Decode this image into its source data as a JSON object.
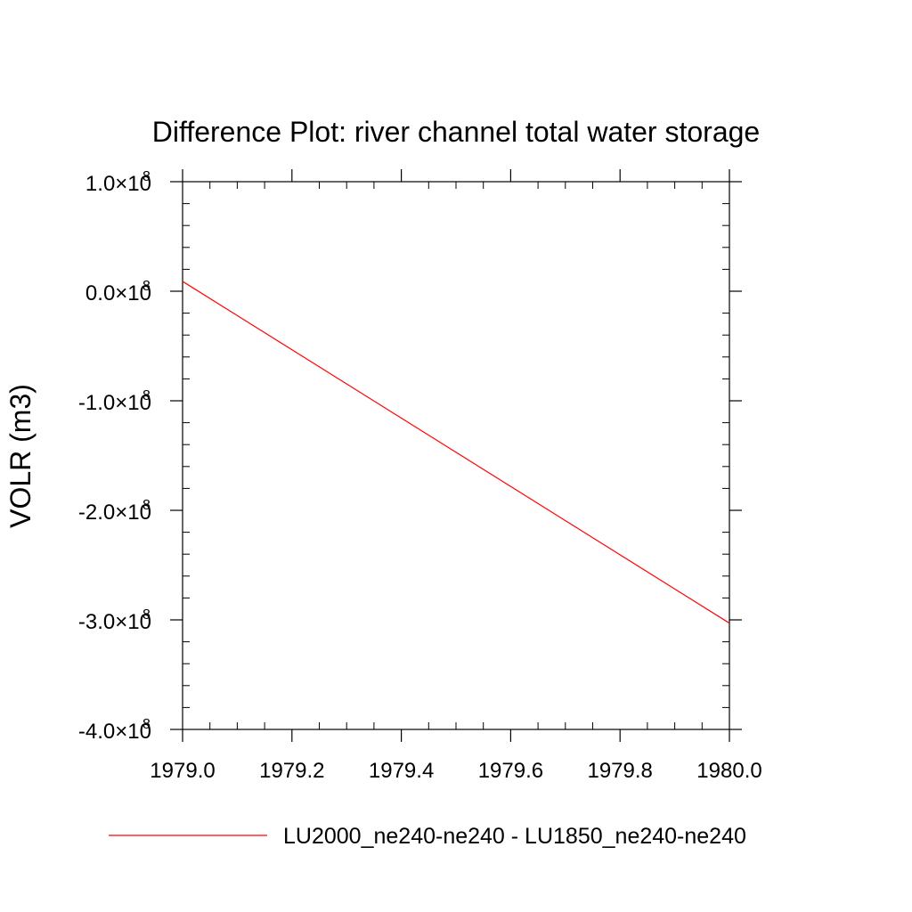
{
  "chart_data": {
    "type": "line",
    "title": "Difference Plot: river channel total water storage",
    "xlabel": "",
    "ylabel": "VOLR  (m3)",
    "xlim": [
      1979.0,
      1980.0
    ],
    "ylim": [
      -400000000,
      100000000
    ],
    "x_ticks": [
      1979.0,
      1979.2,
      1979.4,
      1979.6,
      1979.8,
      1980.0
    ],
    "x_tick_labels": [
      "1979.0",
      "1979.2",
      "1979.4",
      "1979.6",
      "1979.8",
      "1980.0"
    ],
    "y_ticks": [
      100000000,
      0,
      -100000000,
      -200000000,
      -300000000,
      -400000000
    ],
    "y_tick_labels": [
      {
        "mantissa": "1.0",
        "times": "×10",
        "exponent": "8"
      },
      {
        "mantissa": "0.0",
        "times": "×10",
        "exponent": "8"
      },
      {
        "mantissa": "-1.0",
        "times": "×10",
        "exponent": "8"
      },
      {
        "mantissa": "-2.0",
        "times": "×10",
        "exponent": "8"
      },
      {
        "mantissa": "-3.0",
        "times": "×10",
        "exponent": "8"
      },
      {
        "mantissa": "-4.0",
        "times": "×10",
        "exponent": "8"
      }
    ],
    "grid": false,
    "legend_position": "bottom",
    "series": [
      {
        "name": "LU2000_ne240-ne240 - LU1850_ne240-ne240",
        "color": "#ff0000",
        "x": [
          1979.0,
          1980.0
        ],
        "y": [
          9000000,
          -303000000
        ]
      }
    ]
  }
}
